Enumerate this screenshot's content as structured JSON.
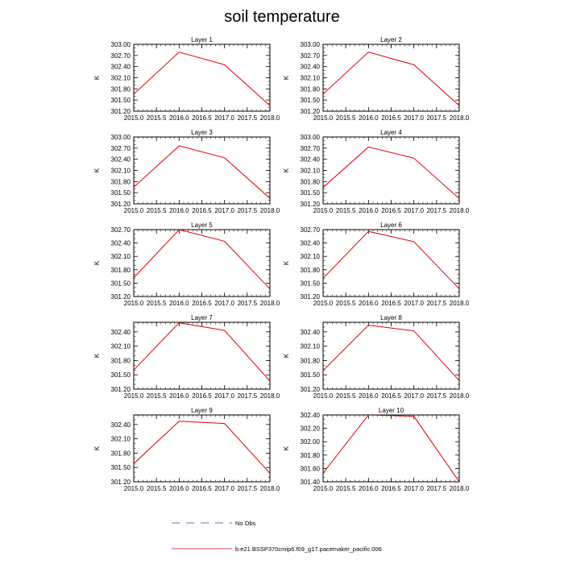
{
  "chart_data": {
    "type": "line",
    "title": "soil temperature",
    "xlabel": "",
    "ylabel": "K",
    "xlim": [
      2015.0,
      2018.0
    ],
    "x_ticks": [
      "2015.0",
      "2015.5",
      "2016.0",
      "2016.5",
      "2017.0",
      "2017.5",
      "2018.0"
    ],
    "x_tick_values": [
      2015.0,
      2015.5,
      2016.0,
      2016.5,
      2017.0,
      2017.5,
      2018.0
    ],
    "legend": [
      {
        "label": "No Obs",
        "style": "dashed",
        "color": "#3b3bbf"
      },
      {
        "label": "b.e21.BSSP370cmip6.f09_g17.pacemaker_pacific.006",
        "style": "solid",
        "color": "#e00000"
      }
    ],
    "panels": [
      {
        "title": "Layer 1",
        "ylim": [
          301.2,
          303.0
        ],
        "y_ticks": [
          "301.20",
          "301.50",
          "301.80",
          "302.10",
          "302.40",
          "302.70",
          "303.00"
        ],
        "y_tick_values": [
          301.2,
          301.5,
          301.8,
          302.1,
          302.4,
          302.7,
          303.0
        ],
        "series": [
          {
            "name": "b.e21.BSSP370cmip6.f09_g17.pacemaker_pacific.006",
            "x": [
              2015.0,
              2016.0,
              2017.0,
              2018.0
            ],
            "values": [
              301.66,
              302.79,
              302.45,
              301.35
            ]
          }
        ]
      },
      {
        "title": "Layer 2",
        "ylim": [
          301.2,
          303.0
        ],
        "y_ticks": [
          "301.20",
          "301.50",
          "301.80",
          "302.10",
          "302.40",
          "302.70",
          "303.00"
        ],
        "y_tick_values": [
          301.2,
          301.5,
          301.8,
          302.1,
          302.4,
          302.7,
          303.0
        ],
        "series": [
          {
            "name": "b.e21.BSSP370cmip6.f09_g17.pacemaker_pacific.006",
            "x": [
              2015.0,
              2016.0,
              2017.0,
              2018.0
            ],
            "values": [
              301.66,
              302.79,
              302.45,
              301.35
            ]
          }
        ]
      },
      {
        "title": "Layer 3",
        "ylim": [
          301.2,
          303.0
        ],
        "y_ticks": [
          "301.20",
          "301.50",
          "301.80",
          "302.10",
          "302.40",
          "302.70",
          "303.00"
        ],
        "y_tick_values": [
          301.2,
          301.5,
          301.8,
          302.1,
          302.4,
          302.7,
          303.0
        ],
        "series": [
          {
            "name": "b.e21.BSSP370cmip6.f09_g17.pacemaker_pacific.006",
            "x": [
              2015.0,
              2016.0,
              2017.0,
              2018.0
            ],
            "values": [
              301.65,
              302.76,
              302.44,
              301.35
            ]
          }
        ]
      },
      {
        "title": "Layer 4",
        "ylim": [
          301.2,
          303.0
        ],
        "y_ticks": [
          "301.20",
          "301.50",
          "301.80",
          "302.10",
          "302.40",
          "302.70",
          "303.00"
        ],
        "y_tick_values": [
          301.2,
          301.5,
          301.8,
          302.1,
          302.4,
          302.7,
          303.0
        ],
        "series": [
          {
            "name": "b.e21.BSSP370cmip6.f09_g17.pacemaker_pacific.006",
            "x": [
              2015.0,
              2016.0,
              2017.0,
              2018.0
            ],
            "values": [
              301.64,
              302.73,
              302.43,
              301.34
            ]
          }
        ]
      },
      {
        "title": "Layer 5",
        "ylim": [
          301.2,
          302.7
        ],
        "y_ticks": [
          "301.20",
          "301.50",
          "301.80",
          "302.10",
          "302.40",
          "302.70"
        ],
        "y_tick_values": [
          301.2,
          301.5,
          301.8,
          302.1,
          302.4,
          302.7
        ],
        "series": [
          {
            "name": "b.e21.BSSP370cmip6.f09_g17.pacemaker_pacific.006",
            "x": [
              2015.0,
              2016.0,
              2017.0,
              2018.0
            ],
            "values": [
              301.62,
              302.7,
              302.44,
              301.37
            ]
          }
        ]
      },
      {
        "title": "Layer 6",
        "ylim": [
          301.2,
          302.7
        ],
        "y_ticks": [
          "301.20",
          "301.50",
          "301.80",
          "302.10",
          "302.40",
          "302.70"
        ],
        "y_tick_values": [
          301.2,
          301.5,
          301.8,
          302.1,
          302.4,
          302.7
        ],
        "series": [
          {
            "name": "b.e21.BSSP370cmip6.f09_g17.pacemaker_pacific.006",
            "x": [
              2015.0,
              2016.0,
              2017.0,
              2018.0
            ],
            "values": [
              301.61,
              302.66,
              302.43,
              301.37
            ]
          }
        ]
      },
      {
        "title": "Layer 7",
        "ylim": [
          301.2,
          302.6
        ],
        "y_ticks": [
          "301.20",
          "301.50",
          "301.80",
          "302.10",
          "302.40"
        ],
        "y_tick_values": [
          301.2,
          301.5,
          301.8,
          302.1,
          302.4
        ],
        "series": [
          {
            "name": "b.e21.BSSP370cmip6.f09_g17.pacemaker_pacific.006",
            "x": [
              2015.0,
              2016.0,
              2017.0,
              2018.0
            ],
            "values": [
              301.6,
              302.59,
              302.43,
              301.37
            ]
          }
        ]
      },
      {
        "title": "Layer 8",
        "ylim": [
          301.2,
          302.6
        ],
        "y_ticks": [
          "301.20",
          "301.50",
          "301.80",
          "302.10",
          "302.40"
        ],
        "y_tick_values": [
          301.2,
          301.5,
          301.8,
          302.1,
          302.4
        ],
        "series": [
          {
            "name": "b.e21.BSSP370cmip6.f09_g17.pacemaker_pacific.006",
            "x": [
              2015.0,
              2016.0,
              2017.0,
              2018.0
            ],
            "values": [
              301.59,
              302.54,
              302.42,
              301.38
            ]
          }
        ]
      },
      {
        "title": "Layer 9",
        "ylim": [
          301.2,
          302.6
        ],
        "y_ticks": [
          "301.20",
          "301.50",
          "301.80",
          "302.10",
          "302.40"
        ],
        "y_tick_values": [
          301.2,
          301.5,
          301.8,
          302.1,
          302.4
        ],
        "series": [
          {
            "name": "b.e21.BSSP370cmip6.f09_g17.pacemaker_pacific.006",
            "x": [
              2015.0,
              2016.0,
              2017.0,
              2018.0
            ],
            "values": [
              301.58,
              302.47,
              302.42,
              301.38
            ]
          }
        ]
      },
      {
        "title": "Layer 10",
        "ylim": [
          301.4,
          302.4
        ],
        "y_ticks": [
          "301.40",
          "301.60",
          "301.80",
          "302.00",
          "302.20",
          "302.40"
        ],
        "y_tick_values": [
          301.4,
          301.6,
          301.8,
          302.0,
          302.2,
          302.4
        ],
        "series": [
          {
            "name": "b.e21.BSSP370cmip6.f09_g17.pacemaker_pacific.006",
            "x": [
              2015.0,
              2016.0,
              2017.0,
              2018.0
            ],
            "values": [
              301.53,
              302.4,
              302.38,
              301.4
            ]
          }
        ]
      }
    ]
  }
}
